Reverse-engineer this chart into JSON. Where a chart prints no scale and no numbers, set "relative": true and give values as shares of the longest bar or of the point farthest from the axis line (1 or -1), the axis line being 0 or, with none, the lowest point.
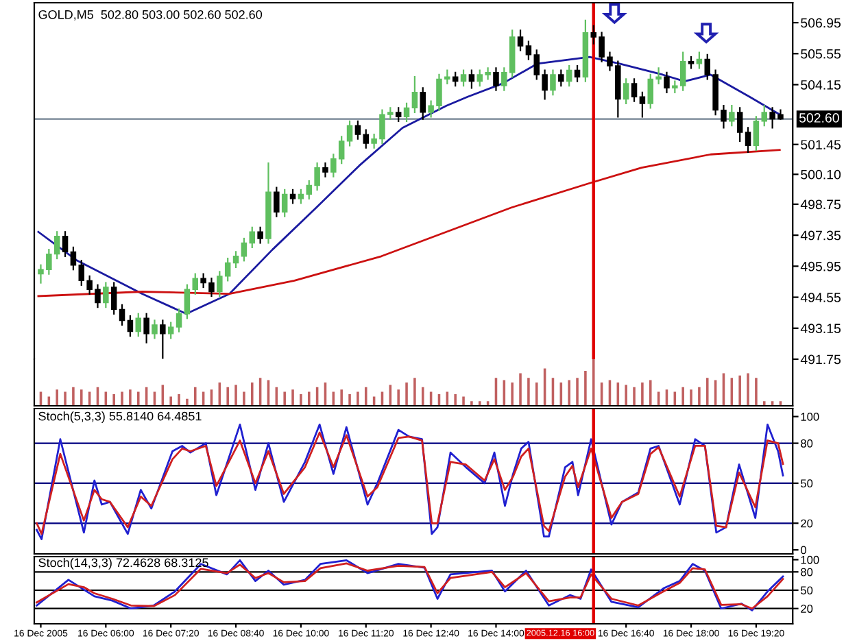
{
  "chart_data": [
    {
      "type": "candlestick",
      "title": "GOLD,M5  502.80 503.00 502.60 502.60",
      "x": [
        "2005-12-16T04:40",
        "2005-12-16T04:50",
        "2005-12-16T05:00",
        "2005-12-16T05:10",
        "2005-12-16T05:20",
        "2005-12-16T05:30",
        "2005-12-16T05:40",
        "2005-12-16T05:50",
        "2005-12-16T06:00",
        "2005-12-16T06:10",
        "2005-12-16T06:20",
        "2005-12-16T06:30",
        "2005-12-16T06:40",
        "2005-12-16T06:50",
        "2005-12-16T07:00",
        "2005-12-16T07:10",
        "2005-12-16T07:20",
        "2005-12-16T07:30",
        "2005-12-16T07:40",
        "2005-12-16T07:50",
        "2005-12-16T08:00",
        "2005-12-16T08:10",
        "2005-12-16T08:20",
        "2005-12-16T08:30",
        "2005-12-16T08:40",
        "2005-12-16T08:50",
        "2005-12-16T09:00",
        "2005-12-16T09:10",
        "2005-12-16T09:20",
        "2005-12-16T09:30",
        "2005-12-16T09:40",
        "2005-12-16T09:50",
        "2005-12-16T10:00",
        "2005-12-16T10:10",
        "2005-12-16T10:20",
        "2005-12-16T10:30",
        "2005-12-16T10:40",
        "2005-12-16T10:50",
        "2005-12-16T11:00",
        "2005-12-16T11:10",
        "2005-12-16T11:20",
        "2005-12-16T11:30",
        "2005-12-16T11:40",
        "2005-12-16T11:50",
        "2005-12-16T12:00",
        "2005-12-16T12:10",
        "2005-12-16T12:20",
        "2005-12-16T12:30",
        "2005-12-16T12:40",
        "2005-12-16T12:50",
        "2005-12-16T13:00",
        "2005-12-16T13:10",
        "2005-12-16T13:20",
        "2005-12-16T13:30",
        "2005-12-16T13:40",
        "2005-12-16T13:50",
        "2005-12-16T14:00",
        "2005-12-16T14:10",
        "2005-12-16T14:20",
        "2005-12-16T14:30",
        "2005-12-16T14:40",
        "2005-12-16T14:50",
        "2005-12-16T15:00",
        "2005-12-16T15:10",
        "2005-12-16T15:20",
        "2005-12-16T15:30",
        "2005-12-16T15:40",
        "2005-12-16T15:50",
        "2005-12-16T16:00",
        "2005-12-16T16:10",
        "2005-12-16T16:20",
        "2005-12-16T16:30",
        "2005-12-16T16:40",
        "2005-12-16T16:50",
        "2005-12-16T17:00",
        "2005-12-16T17:10",
        "2005-12-16T17:20",
        "2005-12-16T17:30",
        "2005-12-16T17:40",
        "2005-12-16T17:50",
        "2005-12-16T18:00",
        "2005-12-16T18:10",
        "2005-12-16T18:20",
        "2005-12-16T18:30",
        "2005-12-16T18:40",
        "2005-12-16T18:50",
        "2005-12-16T19:00",
        "2005-12-16T19:10",
        "2005-12-16T19:20",
        "2005-12-16T19:30",
        "2005-12-16T19:40",
        "2005-12-16T19:50"
      ],
      "ohlc": [
        [
          495.6,
          496.0,
          495.2,
          495.8
        ],
        [
          495.8,
          496.7,
          495.6,
          496.5
        ],
        [
          496.5,
          497.5,
          496.3,
          497.3
        ],
        [
          497.3,
          497.5,
          496.4,
          496.6
        ],
        [
          496.6,
          496.8,
          495.8,
          496.0
        ],
        [
          496.0,
          496.2,
          495.1,
          495.3
        ],
        [
          495.3,
          495.5,
          494.7,
          494.9
        ],
        [
          494.9,
          495.1,
          494.1,
          494.3
        ],
        [
          494.3,
          495.2,
          494.1,
          495.0
        ],
        [
          495.0,
          495.2,
          493.8,
          494.0
        ],
        [
          494.0,
          494.2,
          493.3,
          493.5
        ],
        [
          493.5,
          493.7,
          492.8,
          493.0
        ],
        [
          493.0,
          493.8,
          492.8,
          493.6
        ],
        [
          493.6,
          493.8,
          492.5,
          492.9
        ],
        [
          492.9,
          493.5,
          492.7,
          493.3
        ],
        [
          493.3,
          493.5,
          491.8,
          492.9
        ],
        [
          492.9,
          493.4,
          492.7,
          493.2
        ],
        [
          493.2,
          494.0,
          493.0,
          493.8
        ],
        [
          493.8,
          495.1,
          493.6,
          494.9
        ],
        [
          494.9,
          495.6,
          494.7,
          495.4
        ],
        [
          495.4,
          495.6,
          495.0,
          495.2
        ],
        [
          495.2,
          495.4,
          494.6,
          494.8
        ],
        [
          494.8,
          495.7,
          494.6,
          495.5
        ],
        [
          495.5,
          496.3,
          495.3,
          496.1
        ],
        [
          496.1,
          496.6,
          495.9,
          496.4
        ],
        [
          496.4,
          497.2,
          496.2,
          497.0
        ],
        [
          497.0,
          497.7,
          496.8,
          497.5
        ],
        [
          497.5,
          497.7,
          497.0,
          497.2
        ],
        [
          497.2,
          500.6,
          497.0,
          499.3
        ],
        [
          499.3,
          499.5,
          498.2,
          498.4
        ],
        [
          498.4,
          499.4,
          498.2,
          499.2
        ],
        [
          499.2,
          499.4,
          498.8,
          499.0
        ],
        [
          499.0,
          499.4,
          498.8,
          499.2
        ],
        [
          499.2,
          499.8,
          499.0,
          499.6
        ],
        [
          499.6,
          500.6,
          499.4,
          500.4
        ],
        [
          500.4,
          500.6,
          500.0,
          500.2
        ],
        [
          500.2,
          501.0,
          500.0,
          500.8
        ],
        [
          500.8,
          501.8,
          500.6,
          501.6
        ],
        [
          501.6,
          502.5,
          501.4,
          502.3
        ],
        [
          502.3,
          502.5,
          501.7,
          501.9
        ],
        [
          501.9,
          502.1,
          501.3,
          501.5
        ],
        [
          501.5,
          501.9,
          501.3,
          501.7
        ],
        [
          501.7,
          503.0,
          501.5,
          502.8
        ],
        [
          502.8,
          503.1,
          502.6,
          502.9
        ],
        [
          502.9,
          503.1,
          502.5,
          502.7
        ],
        [
          502.7,
          503.3,
          502.5,
          503.1
        ],
        [
          503.1,
          504.5,
          502.9,
          503.8
        ],
        [
          503.8,
          504.0,
          502.6,
          502.9
        ],
        [
          502.9,
          503.4,
          502.7,
          503.2
        ],
        [
          503.2,
          504.6,
          503.0,
          504.4
        ],
        [
          504.4,
          504.8,
          504.2,
          504.5
        ],
        [
          504.5,
          504.7,
          504.1,
          504.3
        ],
        [
          504.3,
          504.8,
          504.1,
          504.6
        ],
        [
          504.6,
          504.8,
          504.0,
          504.3
        ],
        [
          504.3,
          504.8,
          504.1,
          504.6
        ],
        [
          504.6,
          504.9,
          504.4,
          504.7
        ],
        [
          504.7,
          504.9,
          503.9,
          504.1
        ],
        [
          504.1,
          504.9,
          503.9,
          504.7
        ],
        [
          504.7,
          506.6,
          504.5,
          506.3
        ],
        [
          506.3,
          506.6,
          505.7,
          505.9
        ],
        [
          505.9,
          506.1,
          505.3,
          505.5
        ],
        [
          505.5,
          505.7,
          504.4,
          504.6
        ],
        [
          504.6,
          504.8,
          503.5,
          503.9
        ],
        [
          503.9,
          504.8,
          503.7,
          504.6
        ],
        [
          504.6,
          504.8,
          504.1,
          504.3
        ],
        [
          504.3,
          505.0,
          504.1,
          504.8
        ],
        [
          504.8,
          505.0,
          504.3,
          504.5
        ],
        [
          504.5,
          507.05,
          504.3,
          506.5
        ],
        [
          506.5,
          506.8,
          506.0,
          506.3
        ],
        [
          506.3,
          506.5,
          505.2,
          505.4
        ],
        [
          505.4,
          505.6,
          504.8,
          505.0
        ],
        [
          505.0,
          505.2,
          502.7,
          503.5
        ],
        [
          503.5,
          504.4,
          503.3,
          504.2
        ],
        [
          504.2,
          504.4,
          503.4,
          503.6
        ],
        [
          503.6,
          503.8,
          502.7,
          503.3
        ],
        [
          503.3,
          504.6,
          503.1,
          504.4
        ],
        [
          504.4,
          504.9,
          504.2,
          504.5
        ],
        [
          504.5,
          504.7,
          503.8,
          504.0
        ],
        [
          504.0,
          504.3,
          503.8,
          504.1
        ],
        [
          504.1,
          505.6,
          503.9,
          505.2
        ],
        [
          505.2,
          505.4,
          504.9,
          505.1
        ],
        [
          505.1,
          505.6,
          504.9,
          505.3
        ],
        [
          505.3,
          505.5,
          504.4,
          504.6
        ],
        [
          504.6,
          504.8,
          502.8,
          503.0
        ],
        [
          503.0,
          503.2,
          502.2,
          502.5
        ],
        [
          502.5,
          503.2,
          502.3,
          502.9
        ],
        [
          502.9,
          503.1,
          501.6,
          502.0
        ],
        [
          502.0,
          502.2,
          501.1,
          501.4
        ],
        [
          501.4,
          502.7,
          501.2,
          502.5
        ],
        [
          502.5,
          503.2,
          502.3,
          502.9
        ],
        [
          502.9,
          503.1,
          502.2,
          502.6
        ],
        [
          502.8,
          503.0,
          502.6,
          502.6
        ]
      ],
      "colors": [
        "#5fbf5f",
        "#5fbf5f",
        "#5fbf5f",
        "#000000",
        "#000000",
        "#000000",
        "#000000",
        "#000000",
        "#5fbf5f",
        "#000000",
        "#000000",
        "#000000",
        "#5fbf5f",
        "#000000",
        "#5fbf5f",
        "#000000",
        "#5fbf5f",
        "#5fbf5f",
        "#5fbf5f",
        "#5fbf5f",
        "#000000",
        "#000000",
        "#5fbf5f",
        "#5fbf5f",
        "#5fbf5f",
        "#5fbf5f",
        "#5fbf5f",
        "#000000",
        "#5fbf5f",
        "#000000",
        "#5fbf5f",
        "#000000",
        "#5fbf5f",
        "#5fbf5f",
        "#5fbf5f",
        "#000000",
        "#5fbf5f",
        "#5fbf5f",
        "#5fbf5f",
        "#000000",
        "#000000",
        "#5fbf5f",
        "#5fbf5f",
        "#5fbf5f",
        "#000000",
        "#5fbf5f",
        "#5fbf5f",
        "#000000",
        "#5fbf5f",
        "#5fbf5f",
        "#5fbf5f",
        "#000000",
        "#5fbf5f",
        "#000000",
        "#5fbf5f",
        "#5fbf5f",
        "#000000",
        "#5fbf5f",
        "#5fbf5f",
        "#000000",
        "#000000",
        "#000000",
        "#000000",
        "#5fbf5f",
        "#000000",
        "#5fbf5f",
        "#000000",
        "#5fbf5f",
        "#000000",
        "#000000",
        "#000000",
        "#000000",
        "#5fbf5f",
        "#000000",
        "#000000",
        "#5fbf5f",
        "#5fbf5f",
        "#000000",
        "#5fbf5f",
        "#5fbf5f",
        "#000000",
        "#5fbf5f",
        "#000000",
        "#000000",
        "#000000",
        "#5fbf5f",
        "#000000",
        "#000000",
        "#5fbf5f",
        "#5fbf5f",
        "#000000",
        "#000000"
      ],
      "series": [
        {
          "type": "line",
          "color": "#1a1aa0",
          "x": [
            "2005-12-16T04:37",
            "2005-12-16T05:25",
            "2005-12-16T06:45",
            "2005-12-16T07:39",
            "2005-12-16T08:32",
            "2005-12-16T09:25",
            "2005-12-16T10:19",
            "2005-12-16T11:12",
            "2005-12-16T12:05",
            "2005-12-16T12:59",
            "2005-12-16T13:25",
            "2005-12-16T14:08",
            "2005-12-16T14:51",
            "2005-12-16T15:55",
            "2005-12-16T16:32",
            "2005-12-16T17:25",
            "2005-12-16T17:52",
            "2005-12-16T18:24",
            "2005-12-16T19:12",
            "2005-12-16T19:49"
          ],
          "values": [
            497.5,
            496.2,
            494.7,
            493.8,
            494.7,
            496.7,
            498.6,
            500.5,
            502.2,
            503.2,
            503.6,
            504.2,
            505.1,
            505.4,
            505.1,
            504.6,
            504.3,
            504.6,
            503.6,
            502.8
          ]
        },
        {
          "type": "line",
          "color": "#cc1111",
          "x": [
            "2005-12-16T04:37",
            "2005-12-16T06:45",
            "2005-12-16T08:32",
            "2005-12-16T09:52",
            "2005-12-16T11:39",
            "2005-12-16T12:59",
            "2005-12-16T14:19",
            "2005-12-16T15:55",
            "2005-12-16T16:59",
            "2005-12-16T18:24",
            "2005-12-16T19:49"
          ],
          "values": [
            494.6,
            494.8,
            494.7,
            495.3,
            496.4,
            497.5,
            498.6,
            499.7,
            500.4,
            501.0,
            501.2
          ]
        }
      ],
      "xlim": [
        "2005-12-16T04:32",
        "2005-12-16T20:05"
      ],
      "ylim": [
        491.75,
        507.85
      ],
      "yticks": [
        {
          "value": 491.75,
          "label": "491.75"
        },
        {
          "value": 493.15,
          "label": "493.15"
        },
        {
          "value": 494.55,
          "label": "494.55"
        },
        {
          "value": 495.95,
          "label": "495.95"
        },
        {
          "value": 497.35,
          "label": "497.35"
        },
        {
          "value": 498.75,
          "label": "498.75"
        },
        {
          "value": 500.1,
          "label": "500.10"
        },
        {
          "value": 501.45,
          "label": "501.45"
        },
        {
          "value": 504.15,
          "label": "504.15"
        },
        {
          "value": 505.55,
          "label": "505.55"
        },
        {
          "value": 506.95,
          "label": "506.95"
        }
      ],
      "ref_lines": [
        {
          "axis": "y",
          "value": 502.6,
          "label": "502.60",
          "color": "#708090"
        },
        {
          "axis": "x",
          "value": "2005-12-16T16:00",
          "color": "#e00000"
        }
      ],
      "tick_labels": "y"
    },
    {
      "type": "bar",
      "relative": true,
      "color": "#c06060",
      "x": [
        "2005-12-16T04:40",
        "2005-12-16T04:50",
        "2005-12-16T05:00",
        "2005-12-16T05:10",
        "2005-12-16T05:20",
        "2005-12-16T05:30",
        "2005-12-16T05:40",
        "2005-12-16T05:50",
        "2005-12-16T06:00",
        "2005-12-16T06:10",
        "2005-12-16T06:20",
        "2005-12-16T06:30",
        "2005-12-16T06:40",
        "2005-12-16T06:50",
        "2005-12-16T07:00",
        "2005-12-16T07:10",
        "2005-12-16T07:20",
        "2005-12-16T07:30",
        "2005-12-16T07:40",
        "2005-12-16T07:50",
        "2005-12-16T08:00",
        "2005-12-16T08:10",
        "2005-12-16T08:20",
        "2005-12-16T08:30",
        "2005-12-16T08:40",
        "2005-12-16T08:50",
        "2005-12-16T09:00",
        "2005-12-16T09:10",
        "2005-12-16T09:20",
        "2005-12-16T09:30",
        "2005-12-16T09:40",
        "2005-12-16T09:50",
        "2005-12-16T10:00",
        "2005-12-16T10:10",
        "2005-12-16T10:20",
        "2005-12-16T10:30",
        "2005-12-16T10:40",
        "2005-12-16T10:50",
        "2005-12-16T11:00",
        "2005-12-16T11:10",
        "2005-12-16T11:20",
        "2005-12-16T11:30",
        "2005-12-16T11:40",
        "2005-12-16T11:50",
        "2005-12-16T12:00",
        "2005-12-16T12:10",
        "2005-12-16T12:20",
        "2005-12-16T12:30",
        "2005-12-16T12:40",
        "2005-12-16T12:50",
        "2005-12-16T13:00",
        "2005-12-16T13:10",
        "2005-12-16T13:20",
        "2005-12-16T13:30",
        "2005-12-16T13:40",
        "2005-12-16T13:50",
        "2005-12-16T14:00",
        "2005-12-16T14:10",
        "2005-12-16T14:20",
        "2005-12-16T14:30",
        "2005-12-16T14:40",
        "2005-12-16T14:50",
        "2005-12-16T15:00",
        "2005-12-16T15:10",
        "2005-12-16T15:20",
        "2005-12-16T15:30",
        "2005-12-16T15:40",
        "2005-12-16T15:50",
        "2005-12-16T16:00",
        "2005-12-16T16:10",
        "2005-12-16T16:20",
        "2005-12-16T16:30",
        "2005-12-16T16:40",
        "2005-12-16T16:50",
        "2005-12-16T17:00",
        "2005-12-16T17:10",
        "2005-12-16T17:20",
        "2005-12-16T17:30",
        "2005-12-16T17:40",
        "2005-12-16T17:50",
        "2005-12-16T18:00",
        "2005-12-16T18:10",
        "2005-12-16T18:20",
        "2005-12-16T18:30",
        "2005-12-16T18:40",
        "2005-12-16T18:50",
        "2005-12-16T19:00",
        "2005-12-16T19:10",
        "2005-12-16T19:20",
        "2005-12-16T19:30",
        "2005-12-16T19:40",
        "2005-12-16T19:50"
      ],
      "values": [
        0.3,
        0.2,
        0.35,
        0.3,
        0.4,
        0.35,
        0.3,
        0.4,
        0.3,
        0.25,
        0.3,
        0.35,
        0.3,
        0.4,
        0.3,
        0.45,
        0.2,
        0.25,
        0.15,
        0.4,
        0.3,
        0.35,
        0.5,
        0.4,
        0.45,
        0.3,
        0.5,
        0.6,
        0.55,
        0.4,
        0.3,
        0.35,
        0.25,
        0.3,
        0.4,
        0.5,
        0.3,
        0.35,
        0.25,
        0.3,
        0.4,
        0.2,
        0.3,
        0.45,
        0.35,
        0.5,
        0.6,
        0.4,
        0.3,
        0.25,
        0.3,
        0.25,
        0.2,
        0.1,
        0.1,
        0.1,
        0.6,
        0.55,
        0.5,
        0.7,
        0.6,
        0.5,
        0.8,
        0.6,
        0.5,
        0.55,
        0.6,
        0.75,
        1.0,
        0.5,
        0.55,
        0.5,
        0.45,
        0.4,
        0.5,
        0.55,
        0.3,
        0.35,
        0.3,
        0.4,
        0.35,
        0.4,
        0.6,
        0.55,
        0.7,
        0.6,
        0.65,
        0.7,
        0.6,
        0.1,
        0.1,
        0.1
      ],
      "xlim": [
        "2005-12-16T04:32",
        "2005-12-16T20:05"
      ],
      "tick_labels": false
    },
    {
      "type": "line",
      "title": "Stoch(5,3,3) 55.8140 64.4851",
      "x": [
        "2005-12-16T04:35",
        "2005-12-16T04:41",
        "2005-12-16T05:04",
        "2005-12-16T05:33",
        "2005-12-16T05:46",
        "2005-12-16T05:55",
        "2005-12-16T06:05",
        "2005-12-16T06:27",
        "2005-12-16T06:43",
        "2005-12-16T06:56",
        "2005-12-16T07:22",
        "2005-12-16T07:34",
        "2005-12-16T07:44",
        "2005-12-16T08:03",
        "2005-12-16T08:16",
        "2005-12-16T08:45",
        "2005-12-16T09:04",
        "2005-12-16T09:20",
        "2005-12-16T09:39",
        "2005-12-16T10:05",
        "2005-12-16T10:23",
        "2005-12-16T10:40",
        "2005-12-16T10:56",
        "2005-12-16T11:22",
        "2005-12-16T11:34",
        "2005-12-16T12:00",
        "2005-12-16T12:13",
        "2005-12-16T12:29",
        "2005-12-16T12:41",
        "2005-12-16T12:48",
        "2005-12-16T13:04",
        "2005-12-16T13:23",
        "2005-12-16T13:46",
        "2005-12-16T13:58",
        "2005-12-16T14:11",
        "2005-12-16T14:21",
        "2005-12-16T14:31",
        "2005-12-16T14:40",
        "2005-12-16T14:59",
        "2005-12-16T15:05",
        "2005-12-16T15:25",
        "2005-12-16T15:34",
        "2005-12-16T15:41",
        "2005-12-16T15:57",
        "2005-12-16T16:22",
        "2005-12-16T16:35",
        "2005-12-16T16:55",
        "2005-12-16T17:10",
        "2005-12-16T17:20",
        "2005-12-16T17:46",
        "2005-12-16T18:05",
        "2005-12-16T18:17",
        "2005-12-16T18:31",
        "2005-12-16T18:43",
        "2005-12-16T18:59",
        "2005-12-16T19:19",
        "2005-12-16T19:34",
        "2005-12-16T19:47",
        "2005-12-16T19:53"
      ],
      "series": [
        {
          "color": "#2020d0",
          "values": [
            15,
            8,
            83,
            13,
            52,
            34,
            36,
            12,
            45,
            31,
            74,
            78,
            73,
            80,
            41,
            94,
            45,
            80,
            36,
            66,
            94,
            57,
            92,
            34,
            50,
            90,
            85,
            83,
            12,
            17,
            73,
            62,
            50,
            73,
            33,
            57,
            76,
            81,
            10,
            10,
            62,
            66,
            41,
            83,
            19,
            36,
            43,
            76,
            78,
            34,
            83,
            78,
            13,
            17,
            64,
            24,
            94,
            74,
            55.814
          ]
        },
        {
          "color": "#d02020",
          "values": [
            20,
            12,
            72,
            22,
            45,
            38,
            36,
            17,
            40,
            33,
            68,
            76,
            74,
            78,
            48,
            82,
            50,
            74,
            42,
            62,
            88,
            62,
            86,
            40,
            47,
            84,
            85,
            82,
            20,
            20,
            66,
            64,
            52,
            68,
            45,
            55,
            70,
            76,
            18,
            14,
            55,
            63,
            47,
            76,
            24,
            36,
            42,
            72,
            77,
            40,
            78,
            78,
            18,
            17,
            58,
            32,
            82,
            80,
            64.4851
          ]
        }
      ],
      "xlim": [
        "2005-12-16T04:32",
        "2005-12-16T20:05"
      ],
      "ylim": [
        -3,
        106
      ],
      "yticks": [
        0,
        20,
        50,
        80,
        100
      ],
      "ref_lines": [
        {
          "axis": "y",
          "value": 20,
          "color": "#000080"
        },
        {
          "axis": "y",
          "value": 50,
          "color": "#000080"
        },
        {
          "axis": "y",
          "value": 80,
          "color": "#000080"
        },
        {
          "axis": "x",
          "value": "2005-12-16T16:00",
          "color": "#e00000"
        }
      ],
      "tick_labels": "y"
    },
    {
      "type": "line",
      "title": "Stoch(14,3,3) 72.4628 68.3125",
      "x": [
        "2005-12-16T04:35",
        "2005-12-16T05:14",
        "2005-12-16T05:33",
        "2005-12-16T05:46",
        "2005-12-16T06:08",
        "2005-12-16T06:31",
        "2005-12-16T06:59",
        "2005-12-16T07:25",
        "2005-12-16T07:57",
        "2005-12-16T08:29",
        "2005-12-16T08:45",
        "2005-12-16T09:04",
        "2005-12-16T09:20",
        "2005-12-16T09:39",
        "2005-12-16T10:05",
        "2005-12-16T10:24",
        "2005-12-16T10:56",
        "2005-12-16T11:22",
        "2005-12-16T12:00",
        "2005-12-16T12:32",
        "2005-12-16T12:48",
        "2005-12-16T13:04",
        "2005-12-16T13:55",
        "2005-12-16T14:11",
        "2005-12-16T14:37",
        "2005-12-16T15:05",
        "2005-12-16T15:31",
        "2005-12-16T15:44",
        "2005-12-16T15:57",
        "2005-12-16T16:22",
        "2005-12-16T16:55",
        "2005-12-16T17:26",
        "2005-12-16T17:46",
        "2005-12-16T18:02",
        "2005-12-16T18:17",
        "2005-12-16T18:37",
        "2005-12-16T19:02",
        "2005-12-16T19:15",
        "2005-12-16T19:34",
        "2005-12-16T19:53"
      ],
      "series": [
        {
          "color": "#2020d0",
          "values": [
            25,
            67,
            51,
            40,
            33,
            20,
            25,
            48,
            93,
            76,
            99,
            65,
            82,
            59,
            67,
            93,
            99,
            78,
            93,
            87,
            36,
            76,
            82,
            48,
            82,
            25,
            42,
            36,
            84,
            31,
            22,
            53,
            65,
            93,
            82,
            20,
            28,
            17,
            48,
            72.4628
          ]
        },
        {
          "color": "#d02020",
          "values": [
            30,
            60,
            55,
            45,
            36,
            25,
            24,
            42,
            85,
            78,
            92,
            70,
            78,
            63,
            65,
            86,
            94,
            82,
            90,
            88,
            45,
            70,
            80,
            55,
            78,
            32,
            38,
            38,
            76,
            36,
            25,
            48,
            62,
            86,
            84,
            26,
            27,
            20,
            40,
            68.3125
          ]
        }
      ],
      "xlim": [
        "2005-12-16T04:32",
        "2005-12-16T20:05"
      ],
      "ylim": [
        -5,
        105
      ],
      "yticks": [
        20,
        50,
        80,
        100
      ],
      "xticks": [
        {
          "value": "2005-12-16T04:40",
          "label": "16 Dec 2005"
        },
        {
          "value": "2005-12-16T06:00",
          "label": "16 Dec 06:00"
        },
        {
          "value": "2005-12-16T07:20",
          "label": "16 Dec 07:20"
        },
        {
          "value": "2005-12-16T08:40",
          "label": "16 Dec 08:40"
        },
        {
          "value": "2005-12-16T10:00",
          "label": "16 Dec 10:00"
        },
        {
          "value": "2005-12-16T11:20",
          "label": "16 Dec 11:20"
        },
        {
          "value": "2005-12-16T12:40",
          "label": "16 Dec 12:40"
        },
        {
          "value": "2005-12-16T14:00",
          "label": "16 Dec 14:00"
        },
        {
          "value": "2005-12-16T16:40",
          "label": "16 Dec 16:40"
        },
        {
          "value": "2005-12-16T18:00",
          "label": "16 Dec 18:00"
        },
        {
          "value": "2005-12-16T19:20",
          "label": "16 Dec 19:20"
        }
      ],
      "ref_lines": [
        {
          "axis": "y",
          "value": 20,
          "color": "#000000"
        },
        {
          "axis": "y",
          "value": 50,
          "color": "#000000"
        },
        {
          "axis": "y",
          "value": 80,
          "color": "#000000"
        },
        {
          "axis": "x",
          "value": "2005-12-16T16:00",
          "label": "2005.12.16 16:00",
          "color": "#e00000"
        }
      ]
    }
  ]
}
